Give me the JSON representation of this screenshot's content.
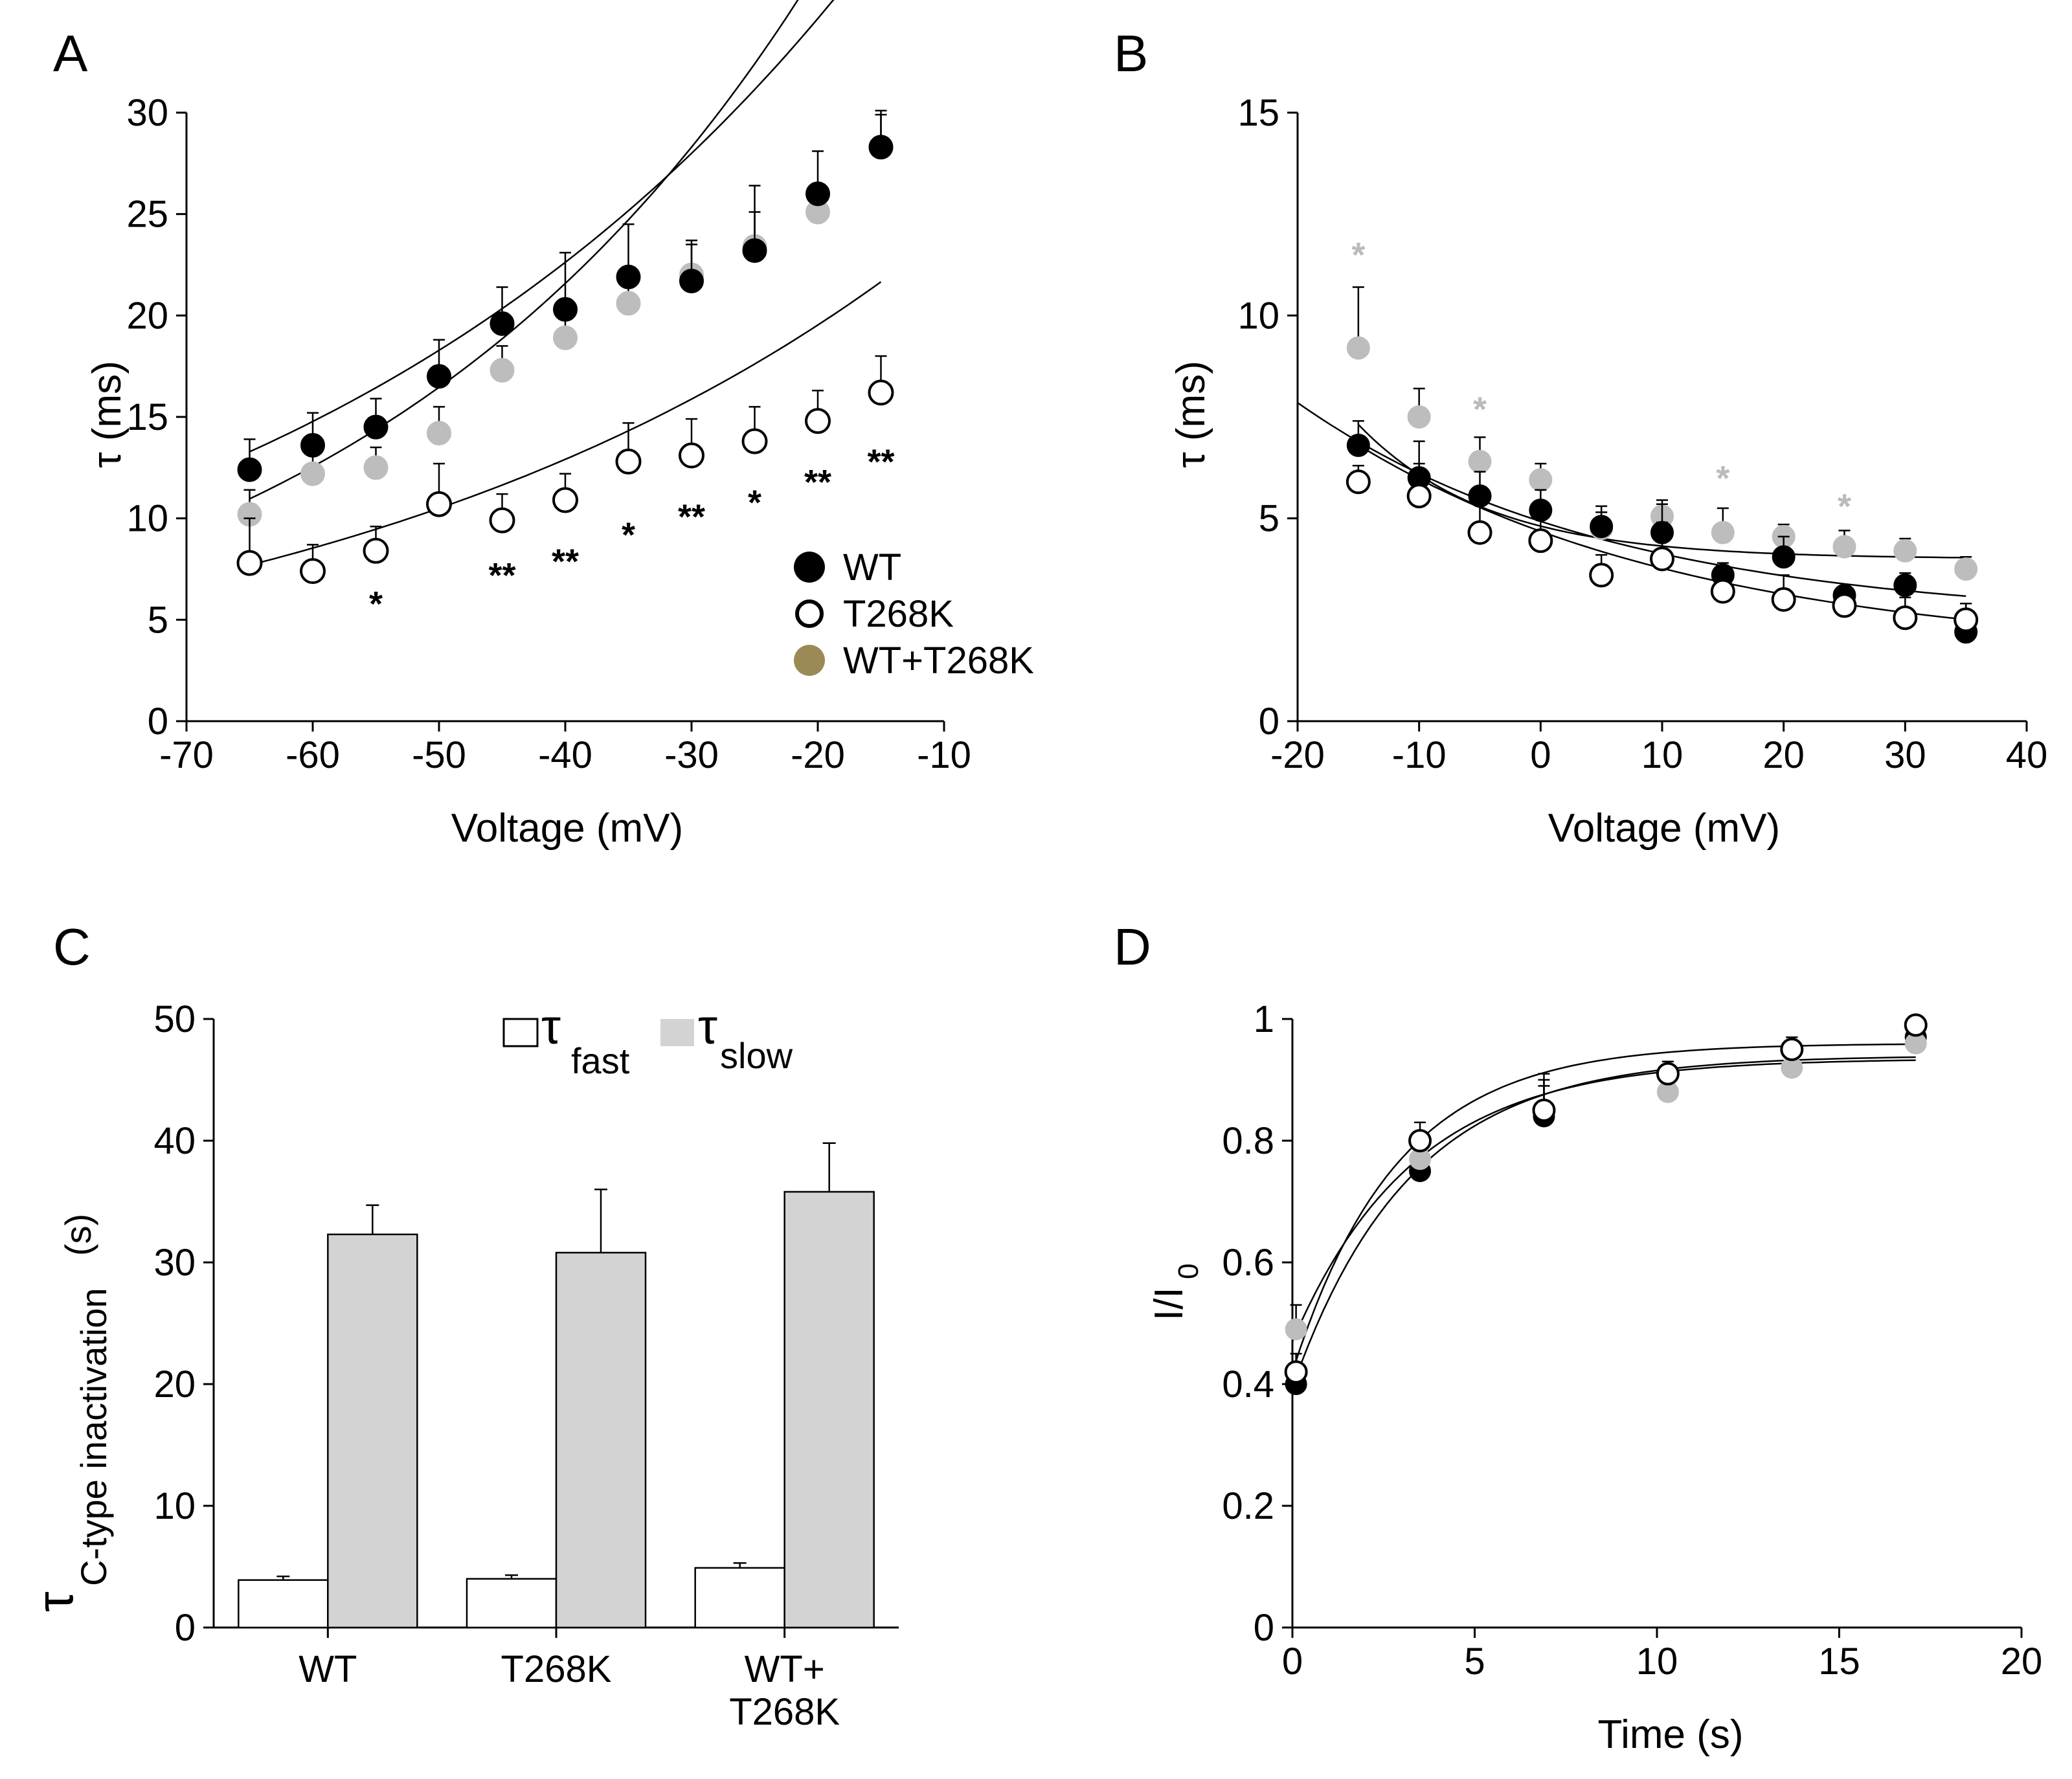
{
  "chart_data": [
    {
      "panel": "A",
      "type": "scatter",
      "xlabel": "Voltage (mV)",
      "ylabel": "τ (ms)",
      "xlim": [
        -70,
        -10
      ],
      "ylim": [
        0,
        30
      ],
      "xticks": [
        -70,
        -60,
        -50,
        -40,
        -30,
        -20,
        -10
      ],
      "yticks": [
        0,
        5,
        10,
        15,
        20,
        25,
        30
      ],
      "x": [
        -65,
        -60,
        -55,
        -50,
        -45,
        -40,
        -35,
        -30,
        -25,
        -20,
        -15
      ],
      "series": [
        {
          "name": "WT",
          "marker": "filled-black",
          "values": [
            12.4,
            13.6,
            14.5,
            17.0,
            19.6,
            20.3,
            21.9,
            21.7,
            23.2,
            26.0,
            28.3
          ],
          "errors": [
            1.5,
            1.6,
            1.4,
            1.8,
            1.8,
            2.8,
            2.6,
            2.0,
            3.2,
            2.1,
            1.8
          ],
          "fit": {
            "type": "exp",
            "a": 9.65,
            "k": 0.0213
          }
        },
        {
          "name": "T268K",
          "marker": "open",
          "values": [
            7.8,
            7.4,
            8.4,
            10.7,
            9.9,
            10.9,
            12.8,
            13.1,
            13.8,
            14.8,
            16.2
          ],
          "errors": [
            2.2,
            1.3,
            1.2,
            2.0,
            1.3,
            1.3,
            1.9,
            1.8,
            1.7,
            1.5,
            1.8
          ],
          "fit": {
            "type": "exp",
            "a": 5.64,
            "k": 0.0207
          }
        },
        {
          "name": "WT+T268K",
          "marker": "filled-gray",
          "values": [
            10.2,
            12.2,
            12.5,
            14.2,
            17.3,
            18.9,
            20.6,
            22.0,
            23.4,
            25.1,
            28.3
          ],
          "errors": [
            1.2,
            1.8,
            1.0,
            1.3,
            1.2,
            1.5,
            1.2,
            1.5,
            1.7,
            1.0,
            1.6
          ],
          "fit": {
            "type": "exp",
            "a": 7.3,
            "k": 0.0271
          }
        }
      ],
      "annotations": [
        {
          "x": -55,
          "y": 5.2,
          "text": "*"
        },
        {
          "x": -45,
          "y": 6.6,
          "text": "**"
        },
        {
          "x": -40,
          "y": 7.3,
          "text": "**"
        },
        {
          "x": -35,
          "y": 8.6,
          "text": "*"
        },
        {
          "x": -30,
          "y": 9.5,
          "text": "**"
        },
        {
          "x": -25,
          "y": 10.2,
          "text": "*"
        },
        {
          "x": -20,
          "y": 11.2,
          "text": "**"
        },
        {
          "x": -15,
          "y": 12.2,
          "text": "**"
        }
      ],
      "legend": {
        "placement": "bottom-right",
        "entries": [
          "WT",
          "T268K",
          "WT+T268K"
        ],
        "gray_swatch_color": "#9b8a55"
      }
    },
    {
      "panel": "B",
      "type": "scatter",
      "xlabel": "Voltage (mV)",
      "ylabel": "τ (ms)",
      "xlim": [
        -20,
        40
      ],
      "ylim": [
        0,
        15
      ],
      "xticks": [
        -20,
        -10,
        0,
        10,
        20,
        30,
        40
      ],
      "yticks": [
        0,
        5,
        10,
        15
      ],
      "x": [
        -15,
        -10,
        -5,
        0,
        5,
        10,
        15,
        20,
        25,
        30,
        35
      ],
      "series": [
        {
          "name": "WT",
          "marker": "filled-black",
          "values": [
            6.8,
            6.0,
            5.55,
            5.2,
            4.8,
            4.65,
            3.6,
            4.05,
            3.1,
            3.35,
            2.2
          ],
          "errors": [
            0.6,
            0.9,
            0.6,
            0.5,
            0.5,
            0.7,
            0.3,
            0.5,
            0.2,
            0.3,
            0.7
          ],
          "fit": {
            "type": "exp-offset",
            "a": 5.4,
            "k": 0.039,
            "c": 2.45
          }
        },
        {
          "name": "T268K",
          "marker": "open",
          "values": [
            5.9,
            5.55,
            4.65,
            4.45,
            3.6,
            4.0,
            3.2,
            3.0,
            2.85,
            2.55,
            2.5
          ],
          "errors": [
            0.4,
            0.8,
            0.9,
            0.8,
            0.5,
            0.9,
            0.4,
            0.6,
            0.3,
            0.5,
            0.4
          ],
          "fit": {
            "type": "exp-offset",
            "a": 6.2,
            "k": 0.035,
            "c": 1.6
          }
        },
        {
          "name": "WT+T268K",
          "marker": "filled-gray",
          "values": [
            9.2,
            7.5,
            6.4,
            5.95,
            4.75,
            5.05,
            4.65,
            4.55,
            4.3,
            4.2,
            3.75
          ],
          "errors": [
            1.5,
            0.7,
            0.6,
            0.4,
            0.4,
            0.4,
            0.6,
            0.3,
            0.4,
            0.3,
            0.3
          ],
          "fit": {
            "type": "exp-offset",
            "a": 5.3,
            "k": 0.094,
            "c": 4.0
          }
        }
      ],
      "annotations": [
        {
          "x": -15,
          "y": 11.2,
          "text": "*"
        },
        {
          "x": -5,
          "y": 7.4,
          "text": "*"
        },
        {
          "x": 15,
          "y": 5.7,
          "text": "*"
        },
        {
          "x": 25,
          "y": 5.0,
          "text": "*"
        }
      ],
      "annotation_color": "#bbbbbb"
    },
    {
      "panel": "C",
      "type": "bar",
      "categories": [
        "WT",
        "T268K",
        "WT+\nT268K"
      ],
      "ylabel_main": "τ",
      "ylabel_sub": "C-type inactivation",
      "ylabel_unit": "(s)",
      "ylim": [
        0,
        50
      ],
      "yticks": [
        0,
        10,
        20,
        30,
        40,
        50
      ],
      "series": [
        {
          "name": "fast",
          "symbol": "τ",
          "color": "#ffffff",
          "values": [
            3.9,
            4.0,
            4.9
          ],
          "errors": [
            0.3,
            0.3,
            0.4
          ]
        },
        {
          "name": "slow",
          "symbol": "τ",
          "color": "#d3d3d3",
          "values": [
            32.3,
            30.8,
            35.8
          ],
          "errors": [
            2.4,
            5.2,
            4.0
          ]
        }
      ],
      "legend": {
        "placement": "top-center"
      }
    },
    {
      "panel": "D",
      "type": "scatter",
      "xlabel": "Time (s)",
      "ylabel": "I/I",
      "ylabel_sub": "0",
      "xlim": [
        0,
        20
      ],
      "ylim": [
        0,
        1
      ],
      "xticks": [
        0,
        5,
        10,
        15,
        20
      ],
      "yticks": [
        0,
        0.2,
        0.4,
        0.6,
        0.8,
        1
      ],
      "x": [
        0.1,
        3.5,
        6.9,
        10.3,
        13.7,
        17.1
      ],
      "series": [
        {
          "name": "WT",
          "marker": "filled-black",
          "values": [
            0.4,
            0.75,
            0.84,
            0.91,
            0.95,
            0.97
          ],
          "errors": [
            0.03,
            0.06,
            0.07,
            0.02,
            0.02,
            0.02
          ],
          "fit": {
            "type": "recovery",
            "a": 0.395,
            "b": 0.545,
            "k": 0.31
          }
        },
        {
          "name": "WT+T268K",
          "marker": "filled-gray",
          "values": [
            0.49,
            0.77,
            0.85,
            0.88,
            0.92,
            0.96
          ],
          "errors": [
            0.04,
            0.03,
            0.04,
            0.02,
            0.01,
            0.01
          ],
          "fit": {
            "type": "recovery",
            "a": 0.47,
            "b": 0.465,
            "k": 0.3
          }
        },
        {
          "name": "T268K",
          "marker": "open",
          "values": [
            0.42,
            0.8,
            0.85,
            0.91,
            0.95,
            0.99
          ],
          "errors": [
            0.03,
            0.03,
            0.05,
            0.02,
            0.02,
            0.01
          ],
          "fit": {
            "type": "recovery",
            "a": 0.42,
            "b": 0.54,
            "k": 0.35
          }
        }
      ]
    }
  ]
}
